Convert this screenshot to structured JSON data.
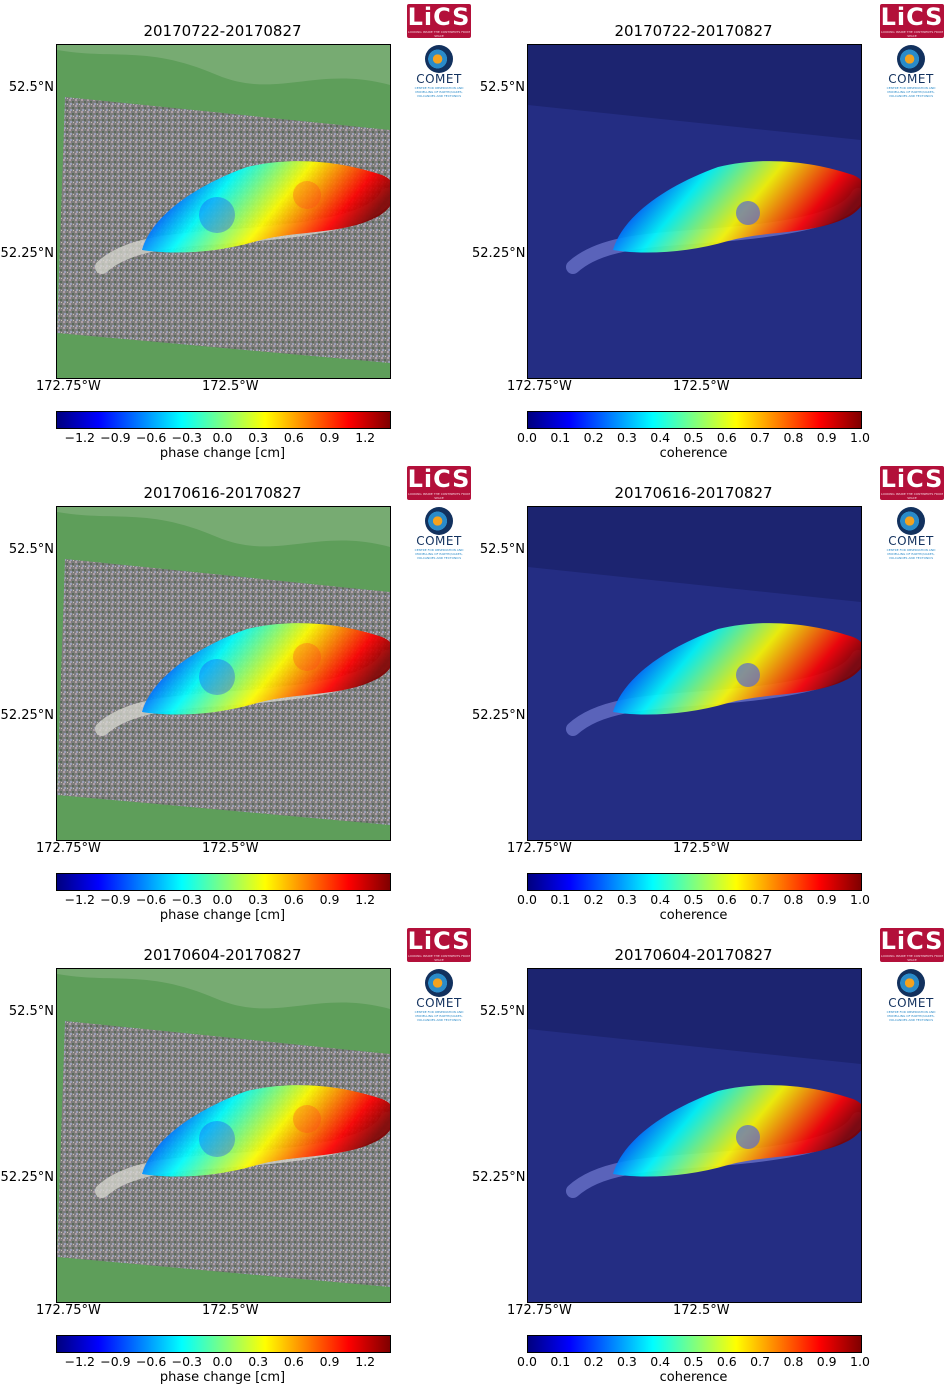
{
  "panels": [
    {
      "id": "p1",
      "kind": "phase",
      "title": "20170722-20170827",
      "lat_labels": [
        "52.5°N",
        "52.25°N"
      ],
      "lon_labels": [
        "172.75°W",
        "172.5°W"
      ],
      "colorbar": {
        "label": "phase change [cm]",
        "ticks": [
          "−1.2",
          "−0.9",
          "−0.6",
          "−0.3",
          "0.0",
          "0.3",
          "0.6",
          "0.9",
          "1.2"
        ],
        "range": [
          -1.4,
          1.4
        ]
      }
    },
    {
      "id": "p2",
      "kind": "coherence",
      "title": "20170722-20170827",
      "lat_labels": [
        "52.5°N",
        "52.25°N"
      ],
      "lon_labels": [
        "172.75°W",
        "172.5°W"
      ],
      "colorbar": {
        "label": "coherence",
        "ticks": [
          "0.0",
          "0.1",
          "0.2",
          "0.3",
          "0.4",
          "0.5",
          "0.6",
          "0.7",
          "0.8",
          "0.9",
          "1.0"
        ],
        "range": [
          0,
          1
        ]
      }
    },
    {
      "id": "p3",
      "kind": "phase",
      "title": "20170616-20170827",
      "lat_labels": [
        "52.5°N",
        "52.25°N"
      ],
      "lon_labels": [
        "172.75°W",
        "172.5°W"
      ],
      "colorbar": {
        "label": "phase change [cm]",
        "ticks": [
          "−1.2",
          "−0.9",
          "−0.6",
          "−0.3",
          "0.0",
          "0.3",
          "0.6",
          "0.9",
          "1.2"
        ],
        "range": [
          -1.4,
          1.4
        ]
      }
    },
    {
      "id": "p4",
      "kind": "coherence",
      "title": "20170616-20170827",
      "lat_labels": [
        "52.5°N",
        "52.25°N"
      ],
      "lon_labels": [
        "172.75°W",
        "172.5°W"
      ],
      "colorbar": {
        "label": "coherence",
        "ticks": [
          "0.0",
          "0.1",
          "0.2",
          "0.3",
          "0.4",
          "0.5",
          "0.6",
          "0.7",
          "0.8",
          "0.9",
          "1.0"
        ],
        "range": [
          0,
          1
        ]
      }
    },
    {
      "id": "p5",
      "kind": "phase",
      "title": "20170604-20170827",
      "lat_labels": [
        "52.5°N",
        "52.25°N"
      ],
      "lon_labels": [
        "172.75°W",
        "172.5°W"
      ],
      "colorbar": {
        "label": "phase change [cm]",
        "ticks": [
          "−1.2",
          "−0.9",
          "−0.6",
          "−0.3",
          "0.0",
          "0.3",
          "0.6",
          "0.9",
          "1.2"
        ],
        "range": [
          -1.4,
          1.4
        ]
      }
    },
    {
      "id": "p6",
      "kind": "coherence",
      "title": "20170604-20170827",
      "lat_labels": [
        "52.5°N",
        "52.25°N"
      ],
      "lon_labels": [
        "172.75°W",
        "172.5°W"
      ],
      "colorbar": {
        "label": "coherence",
        "ticks": [
          "0.0",
          "0.1",
          "0.2",
          "0.3",
          "0.4",
          "0.5",
          "0.6",
          "0.7",
          "0.8",
          "0.9",
          "1.0"
        ],
        "range": [
          0,
          1
        ]
      }
    }
  ],
  "logos": {
    "lics_text": "LiCS",
    "lics_tagline": "LOOKING INSIDE THE CONTINENTS FROM SPACE",
    "comet_text": "COMET",
    "comet_tagline": "CENTRE FOR OBSERVATION AND MODELLING OF EARTHQUAKES, VOLCANOES AND TECTONICS"
  },
  "colors": {
    "land_green": "#5e9e5a",
    "ocean_blue": "#1c2470",
    "noise_grey": "#8a8a8a",
    "jet": [
      "#00007f",
      "#0000ff",
      "#007fff",
      "#00ffff",
      "#7fff7f",
      "#ffff00",
      "#ff7f00",
      "#ff0000",
      "#7f0000"
    ]
  },
  "icons": [
    "lics-logo",
    "comet-logo"
  ]
}
